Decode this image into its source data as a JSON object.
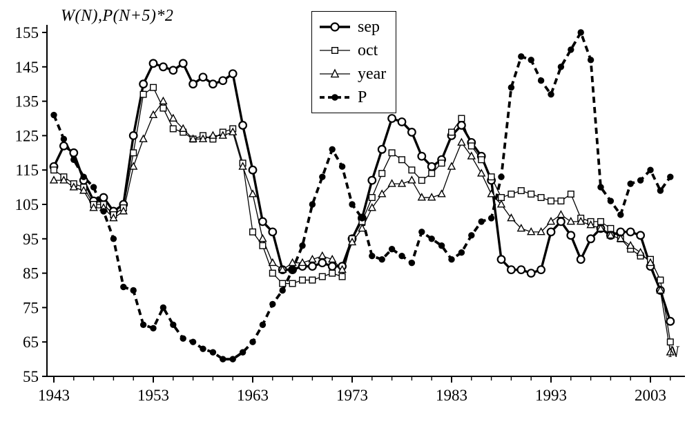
{
  "chart_data": {
    "type": "line",
    "title": "",
    "ylabel": "W(N),P(N+5)*2",
    "xlabel": "N",
    "grid": false,
    "legend_position": "top-center",
    "ylim": [
      55,
      155
    ],
    "y_ticks": [
      55,
      65,
      75,
      85,
      95,
      105,
      115,
      125,
      135,
      145,
      155
    ],
    "x_tick_labels": [
      1943,
      1953,
      1963,
      1973,
      1983,
      1993,
      2003
    ],
    "x": [
      1943,
      1944,
      1945,
      1946,
      1947,
      1948,
      1949,
      1950,
      1951,
      1952,
      1953,
      1954,
      1955,
      1956,
      1957,
      1958,
      1959,
      1960,
      1961,
      1962,
      1963,
      1964,
      1965,
      1966,
      1967,
      1968,
      1969,
      1970,
      1971,
      1972,
      1973,
      1974,
      1975,
      1976,
      1977,
      1978,
      1979,
      1980,
      1981,
      1982,
      1983,
      1984,
      1985,
      1986,
      1987,
      1988,
      1989,
      1990,
      1991,
      1992,
      1993,
      1994,
      1995,
      1996,
      1997,
      1998,
      1999,
      2000,
      2001,
      2002,
      2003,
      2004,
      2005
    ],
    "series": [
      {
        "name": "sep",
        "line": "thick-solid",
        "marker": "open-circle",
        "values": [
          116,
          122,
          120,
          112,
          106,
          107,
          103,
          105,
          125,
          140,
          146,
          145,
          144,
          146,
          140,
          142,
          140,
          141,
          143,
          128,
          115,
          100,
          97,
          86,
          86,
          87,
          87,
          88,
          87,
          87,
          95,
          101,
          112,
          121,
          130,
          129,
          126,
          119,
          116,
          118,
          125,
          128,
          123,
          119,
          112,
          89,
          86,
          86,
          85,
          86,
          97,
          100,
          96,
          89,
          95,
          98,
          96,
          97,
          97,
          96,
          87,
          80,
          71
        ]
      },
      {
        "name": "oct",
        "line": "thin-solid",
        "marker": "open-square",
        "values": [
          115,
          113,
          111,
          110,
          105,
          105,
          102,
          104,
          120,
          137,
          139,
          133,
          127,
          126,
          124,
          125,
          124,
          126,
          127,
          117,
          97,
          93,
          85,
          82,
          82,
          83,
          83,
          84,
          85,
          84,
          95,
          100,
          107,
          114,
          120,
          118,
          115,
          112,
          114,
          117,
          126,
          130,
          122,
          118,
          113,
          107,
          108,
          109,
          108,
          107,
          106,
          106,
          108,
          101,
          100,
          100,
          98,
          95,
          92,
          90,
          89,
          83,
          65
        ]
      },
      {
        "name": "year",
        "line": "thin-solid",
        "marker": "open-triangle",
        "values": [
          112,
          112,
          110,
          109,
          104,
          104,
          101,
          103,
          116,
          124,
          131,
          135,
          130,
          127,
          124,
          124,
          125,
          125,
          126,
          116,
          108,
          95,
          88,
          86,
          88,
          88,
          89,
          90,
          89,
          86,
          94,
          98,
          104,
          108,
          111,
          111,
          112,
          107,
          107,
          108,
          116,
          123,
          119,
          114,
          108,
          105,
          101,
          98,
          97,
          97,
          100,
          102,
          100,
          100,
          99,
          98,
          96,
          95,
          93,
          91,
          88,
          80,
          62
        ]
      },
      {
        "name": "P",
        "line": "thick-dashed",
        "marker": "filled-circle",
        "values": [
          131,
          124,
          118,
          113,
          110,
          103,
          95,
          81,
          80,
          70,
          69,
          75,
          70,
          66,
          65,
          63,
          62,
          60,
          60,
          62,
          65,
          70,
          76,
          80,
          86,
          93,
          105,
          113,
          121,
          116,
          105,
          101,
          90,
          89,
          92,
          90,
          88,
          97,
          95,
          93,
          89,
          91,
          96,
          100,
          101,
          113,
          139,
          148,
          147,
          141,
          137,
          145,
          150,
          155,
          147,
          110,
          106,
          102,
          111,
          112,
          115,
          109,
          113
        ]
      }
    ]
  }
}
